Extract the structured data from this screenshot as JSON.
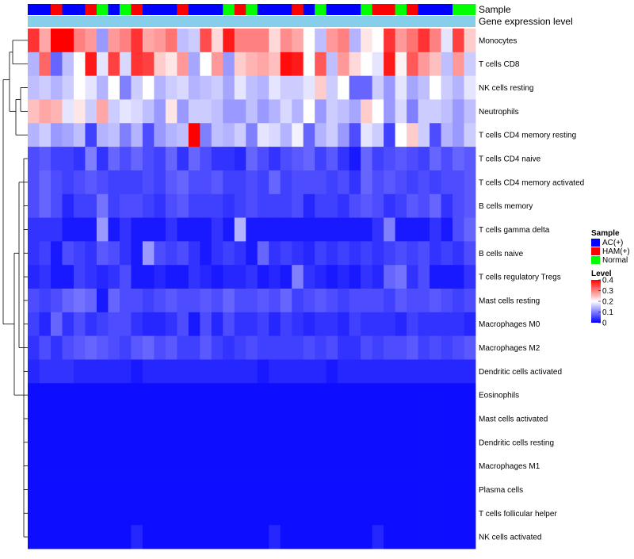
{
  "chart_data": {
    "type": "heatmap",
    "annotations": {
      "sample_label": "Sample",
      "gene_label": "Gene expression level",
      "sample_groups": [
        "AC(+)",
        "AC(+)",
        "HAM(+)",
        "AC(+)",
        "AC(+)",
        "HAM(+)",
        "Normal",
        "AC(+)",
        "Normal",
        "HAM(+)",
        "AC(+)",
        "AC(+)",
        "AC(+)",
        "HAM(+)",
        "AC(+)",
        "AC(+)",
        "AC(+)",
        "Normal",
        "HAM(+)",
        "Normal",
        "AC(+)",
        "AC(+)",
        "AC(+)",
        "HAM(+)",
        "AC(+)",
        "Normal",
        "AC(+)",
        "AC(+)",
        "AC(+)",
        "Normal",
        "HAM(+)",
        "HAM(+)",
        "Normal",
        "HAM(+)",
        "AC(+)",
        "AC(+)",
        "AC(+)",
        "Normal",
        "Normal"
      ]
    },
    "rows": [
      "Monocytes",
      "T cells CD8",
      "NK cells resting",
      "Neutrophils",
      "T cells CD4 memory resting",
      "T cells CD4 naive",
      "T cells CD4 memory activated",
      "B cells memory",
      "T cells gamma delta",
      "B cells naive",
      "T cells regulatory  Tregs",
      "Mast cells resting",
      "Macrophages M0",
      "Macrophages M2",
      "Dendritic cells activated",
      "Eosinophils",
      "Mast cells activated",
      "Dendritic cells resting",
      "Macrophages M1",
      "Plasma cells",
      "T cells follicular helper",
      "NK cells activated"
    ],
    "values": [
      [
        0.36,
        0.27,
        0.4,
        0.4,
        0.3,
        0.28,
        0.12,
        0.28,
        0.3,
        0.36,
        0.27,
        0.28,
        0.31,
        0.15,
        0.16,
        0.34,
        0.23,
        0.38,
        0.3,
        0.3,
        0.3,
        0.23,
        0.29,
        0.27,
        0.2,
        0.15,
        0.28,
        0.3,
        0.14,
        0.22,
        0.2,
        0.36,
        0.28,
        0.31,
        0.36,
        0.3,
        0.18,
        0.35,
        0.24
      ],
      [
        0.14,
        0.32,
        0.08,
        0.15,
        0.2,
        0.38,
        0.18,
        0.35,
        0.17,
        0.36,
        0.35,
        0.24,
        0.22,
        0.28,
        0.13,
        0.2,
        0.28,
        0.12,
        0.24,
        0.26,
        0.27,
        0.25,
        0.39,
        0.38,
        0.2,
        0.33,
        0.15,
        0.28,
        0.23,
        0.2,
        0.18,
        0.38,
        0.21,
        0.33,
        0.28,
        0.25,
        0.15,
        0.28,
        0.16
      ],
      [
        0.15,
        0.16,
        0.14,
        0.16,
        0.2,
        0.18,
        0.14,
        0.2,
        0.1,
        0.16,
        0.2,
        0.14,
        0.16,
        0.17,
        0.14,
        0.15,
        0.16,
        0.13,
        0.18,
        0.15,
        0.14,
        0.18,
        0.16,
        0.16,
        0.18,
        0.24,
        0.16,
        0.2,
        0.08,
        0.08,
        0.16,
        0.12,
        0.18,
        0.13,
        0.15,
        0.2,
        0.16,
        0.14,
        0.18
      ],
      [
        0.25,
        0.27,
        0.26,
        0.18,
        0.22,
        0.16,
        0.27,
        0.16,
        0.18,
        0.17,
        0.15,
        0.12,
        0.22,
        0.12,
        0.16,
        0.16,
        0.15,
        0.12,
        0.12,
        0.15,
        0.12,
        0.14,
        0.17,
        0.14,
        0.2,
        0.12,
        0.16,
        0.15,
        0.13,
        0.24,
        0.2,
        0.12,
        0.17,
        0.1,
        0.16,
        0.16,
        0.15,
        0.12,
        0.15
      ],
      [
        0.14,
        0.16,
        0.12,
        0.13,
        0.15,
        0.05,
        0.14,
        0.15,
        0.1,
        0.14,
        0.06,
        0.12,
        0.14,
        0.15,
        0.4,
        0.1,
        0.15,
        0.14,
        0.16,
        0.1,
        0.18,
        0.17,
        0.14,
        0.19,
        0.08,
        0.14,
        0.16,
        0.12,
        0.06,
        0.18,
        0.16,
        0.05,
        0.2,
        0.24,
        0.16,
        0.06,
        0.14,
        0.12,
        0.16
      ],
      [
        0.06,
        0.07,
        0.05,
        0.05,
        0.04,
        0.1,
        0.04,
        0.08,
        0.06,
        0.08,
        0.06,
        0.05,
        0.08,
        0.04,
        0.08,
        0.06,
        0.04,
        0.04,
        0.03,
        0.08,
        0.06,
        0.04,
        0.06,
        0.07,
        0.08,
        0.05,
        0.07,
        0.04,
        0.02,
        0.08,
        0.05,
        0.06,
        0.07,
        0.06,
        0.05,
        0.08,
        0.06,
        0.08,
        0.07
      ],
      [
        0.06,
        0.08,
        0.06,
        0.05,
        0.06,
        0.07,
        0.06,
        0.05,
        0.05,
        0.05,
        0.06,
        0.05,
        0.07,
        0.08,
        0.06,
        0.06,
        0.07,
        0.05,
        0.05,
        0.06,
        0.05,
        0.08,
        0.05,
        0.06,
        0.06,
        0.06,
        0.05,
        0.06,
        0.04,
        0.08,
        0.06,
        0.07,
        0.06,
        0.05,
        0.06,
        0.05,
        0.06,
        0.06,
        0.07
      ],
      [
        0.06,
        0.08,
        0.06,
        0.03,
        0.05,
        0.05,
        0.09,
        0.05,
        0.06,
        0.06,
        0.05,
        0.04,
        0.06,
        0.07,
        0.05,
        0.05,
        0.05,
        0.04,
        0.05,
        0.06,
        0.05,
        0.05,
        0.05,
        0.06,
        0.03,
        0.05,
        0.05,
        0.04,
        0.06,
        0.07,
        0.06,
        0.04,
        0.05,
        0.07,
        0.06,
        0.08,
        0.04,
        0.06,
        0.07
      ],
      [
        0.04,
        0.04,
        0.04,
        0.02,
        0.02,
        0.02,
        0.12,
        0.02,
        0.04,
        0.02,
        0.02,
        0.02,
        0.04,
        0.02,
        0.02,
        0.02,
        0.04,
        0.02,
        0.14,
        0.02,
        0.02,
        0.02,
        0.02,
        0.02,
        0.02,
        0.02,
        0.02,
        0.02,
        0.02,
        0.02,
        0.04,
        0.1,
        0.02,
        0.02,
        0.02,
        0.04,
        0.02,
        0.06,
        0.08
      ],
      [
        0.04,
        0.05,
        0.02,
        0.06,
        0.05,
        0.04,
        0.07,
        0.06,
        0.04,
        0.02,
        0.12,
        0.06,
        0.05,
        0.06,
        0.04,
        0.02,
        0.04,
        0.05,
        0.04,
        0.02,
        0.08,
        0.04,
        0.05,
        0.04,
        0.03,
        0.05,
        0.04,
        0.05,
        0.04,
        0.05,
        0.04,
        0.05,
        0.06,
        0.05,
        0.06,
        0.04,
        0.05,
        0.04,
        0.06
      ],
      [
        0.03,
        0.04,
        0.02,
        0.02,
        0.05,
        0.04,
        0.03,
        0.04,
        0.06,
        0.02,
        0.02,
        0.03,
        0.02,
        0.02,
        0.04,
        0.03,
        0.02,
        0.03,
        0.03,
        0.04,
        0.02,
        0.03,
        0.02,
        0.1,
        0.04,
        0.03,
        0.02,
        0.03,
        0.02,
        0.04,
        0.03,
        0.08,
        0.09,
        0.04,
        0.06,
        0.02,
        0.02,
        0.02,
        0.04
      ],
      [
        0.06,
        0.05,
        0.06,
        0.08,
        0.09,
        0.08,
        0.02,
        0.08,
        0.06,
        0.06,
        0.05,
        0.06,
        0.07,
        0.06,
        0.06,
        0.07,
        0.06,
        0.08,
        0.06,
        0.06,
        0.07,
        0.06,
        0.08,
        0.05,
        0.06,
        0.07,
        0.06,
        0.05,
        0.06,
        0.06,
        0.06,
        0.05,
        0.07,
        0.06,
        0.06,
        0.07,
        0.06,
        0.05,
        0.06
      ],
      [
        0.05,
        0.03,
        0.08,
        0.04,
        0.06,
        0.04,
        0.05,
        0.06,
        0.06,
        0.04,
        0.03,
        0.03,
        0.04,
        0.06,
        0.02,
        0.06,
        0.03,
        0.06,
        0.04,
        0.04,
        0.05,
        0.03,
        0.05,
        0.04,
        0.03,
        0.04,
        0.04,
        0.03,
        0.05,
        0.04,
        0.04,
        0.04,
        0.03,
        0.05,
        0.04,
        0.04,
        0.04,
        0.04,
        0.03
      ],
      [
        0.04,
        0.06,
        0.04,
        0.06,
        0.07,
        0.08,
        0.07,
        0.06,
        0.05,
        0.07,
        0.08,
        0.06,
        0.07,
        0.05,
        0.05,
        0.07,
        0.05,
        0.04,
        0.05,
        0.06,
        0.05,
        0.05,
        0.05,
        0.05,
        0.06,
        0.05,
        0.06,
        0.04,
        0.04,
        0.06,
        0.05,
        0.06,
        0.06,
        0.07,
        0.05,
        0.06,
        0.05,
        0.06,
        0.07
      ],
      [
        0.03,
        0.04,
        0.04,
        0.04,
        0.03,
        0.03,
        0.03,
        0.03,
        0.03,
        0.02,
        0.03,
        0.03,
        0.03,
        0.03,
        0.03,
        0.03,
        0.03,
        0.03,
        0.03,
        0.03,
        0.02,
        0.03,
        0.03,
        0.03,
        0.03,
        0.03,
        0.02,
        0.03,
        0.03,
        0.03,
        0.03,
        0.03,
        0.03,
        0.03,
        0.03,
        0.03,
        0.03,
        0.03,
        0.03
      ],
      [
        0.01,
        0.01,
        0.01,
        0.01,
        0.01,
        0.01,
        0.01,
        0.01,
        0.01,
        0.01,
        0.01,
        0.01,
        0.01,
        0.01,
        0.01,
        0.01,
        0.01,
        0.01,
        0.01,
        0.01,
        0.01,
        0.01,
        0.01,
        0.01,
        0.01,
        0.01,
        0.01,
        0.01,
        0.01,
        0.01,
        0.01,
        0.01,
        0.01,
        0.01,
        0.01,
        0.01,
        0.01,
        0.01,
        0.01
      ],
      [
        0.01,
        0.01,
        0.01,
        0.01,
        0.01,
        0.01,
        0.01,
        0.01,
        0.01,
        0.01,
        0.01,
        0.01,
        0.01,
        0.01,
        0.01,
        0.01,
        0.01,
        0.01,
        0.01,
        0.01,
        0.01,
        0.01,
        0.01,
        0.01,
        0.01,
        0.01,
        0.01,
        0.01,
        0.01,
        0.01,
        0.01,
        0.01,
        0.01,
        0.01,
        0.01,
        0.01,
        0.01,
        0.01,
        0.01
      ],
      [
        0.01,
        0.01,
        0.01,
        0.01,
        0.01,
        0.01,
        0.01,
        0.01,
        0.01,
        0.01,
        0.01,
        0.01,
        0.01,
        0.01,
        0.01,
        0.01,
        0.01,
        0.01,
        0.01,
        0.01,
        0.01,
        0.01,
        0.01,
        0.01,
        0.01,
        0.01,
        0.01,
        0.01,
        0.01,
        0.01,
        0.01,
        0.01,
        0.01,
        0.01,
        0.01,
        0.01,
        0.01,
        0.01,
        0.01
      ],
      [
        0.01,
        0.01,
        0.01,
        0.01,
        0.01,
        0.01,
        0.01,
        0.01,
        0.01,
        0.01,
        0.01,
        0.01,
        0.01,
        0.01,
        0.01,
        0.01,
        0.01,
        0.01,
        0.01,
        0.01,
        0.01,
        0.01,
        0.01,
        0.01,
        0.01,
        0.01,
        0.01,
        0.01,
        0.01,
        0.01,
        0.01,
        0.01,
        0.01,
        0.01,
        0.01,
        0.01,
        0.01,
        0.01,
        0.01
      ],
      [
        0.01,
        0.01,
        0.01,
        0.01,
        0.01,
        0.01,
        0.01,
        0.01,
        0.01,
        0.01,
        0.01,
        0.01,
        0.01,
        0.01,
        0.01,
        0.01,
        0.01,
        0.01,
        0.01,
        0.01,
        0.01,
        0.01,
        0.01,
        0.01,
        0.01,
        0.01,
        0.01,
        0.01,
        0.01,
        0.01,
        0.01,
        0.01,
        0.01,
        0.01,
        0.01,
        0.01,
        0.01,
        0.01,
        0.01
      ],
      [
        0.01,
        0.01,
        0.01,
        0.01,
        0.01,
        0.01,
        0.01,
        0.01,
        0.01,
        0.01,
        0.01,
        0.01,
        0.01,
        0.01,
        0.01,
        0.01,
        0.01,
        0.01,
        0.01,
        0.01,
        0.01,
        0.01,
        0.01,
        0.01,
        0.01,
        0.01,
        0.01,
        0.01,
        0.01,
        0.01,
        0.01,
        0.01,
        0.01,
        0.01,
        0.01,
        0.01,
        0.01,
        0.01,
        0.01
      ],
      [
        0.01,
        0.01,
        0.01,
        0.01,
        0.01,
        0.01,
        0.01,
        0.01,
        0.01,
        0.03,
        0.01,
        0.01,
        0.01,
        0.01,
        0.01,
        0.01,
        0.01,
        0.01,
        0.01,
        0.01,
        0.01,
        0.03,
        0.01,
        0.01,
        0.01,
        0.01,
        0.01,
        0.01,
        0.01,
        0.01,
        0.03,
        0.01,
        0.01,
        0.01,
        0.01,
        0.01,
        0.01,
        0.01,
        0.01
      ]
    ],
    "legend": {
      "sample_title": "Sample",
      "sample_items": [
        {
          "label": "AC(+)",
          "color": "#0000ff"
        },
        {
          "label": "HAM(+)",
          "color": "#ff0000"
        },
        {
          "label": "Normal",
          "color": "#00ff00"
        }
      ],
      "level_title": "Level",
      "level_ticks": [
        "0.4",
        "0.3",
        "0.2",
        "0.1",
        "0"
      ],
      "level_range": [
        0,
        0.4
      ]
    },
    "colors": {
      "low": "#0000ff",
      "mid": "#ffffff",
      "high": "#ff0000",
      "gene_bar": "#87ceeb"
    }
  }
}
